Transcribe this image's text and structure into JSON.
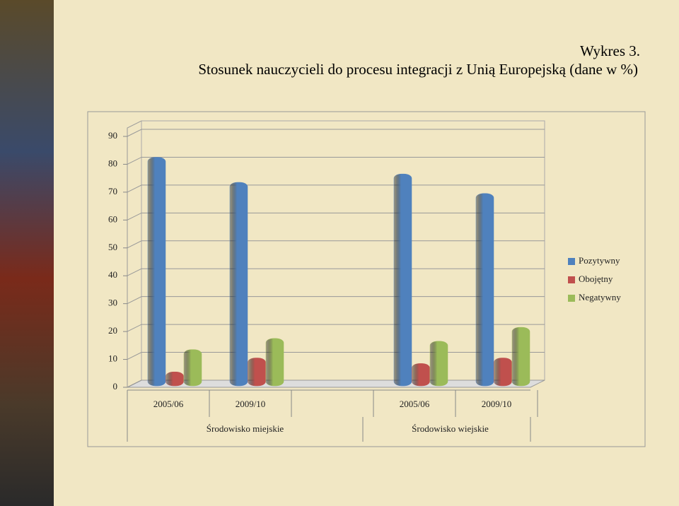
{
  "chart_data": {
    "type": "bar",
    "title": "Wykres 3.",
    "subtitle": "Stosunek nauczycieli do procesu integracji z Unią Europejską (dane w %)",
    "categories": [
      "2005/06",
      "2009/10",
      null,
      "2005/06",
      "2009/10"
    ],
    "groups": [
      "Środowisko miejskie",
      "Środowisko wiejskie"
    ],
    "series": [
      {
        "name": "Pozytywny",
        "color": "#4f81bd",
        "values": [
          81,
          72,
          null,
          75,
          68
        ]
      },
      {
        "name": "Obojętny",
        "color": "#c0504d",
        "values": [
          4,
          9,
          null,
          7,
          9
        ]
      },
      {
        "name": "Negatywny",
        "color": "#9bbb59",
        "values": [
          12,
          16,
          null,
          15,
          20
        ]
      }
    ],
    "ylim": [
      0,
      90
    ],
    "yticks": [
      0,
      10,
      20,
      30,
      40,
      50,
      60,
      70,
      80,
      90
    ],
    "grid": true,
    "legend": "right"
  }
}
